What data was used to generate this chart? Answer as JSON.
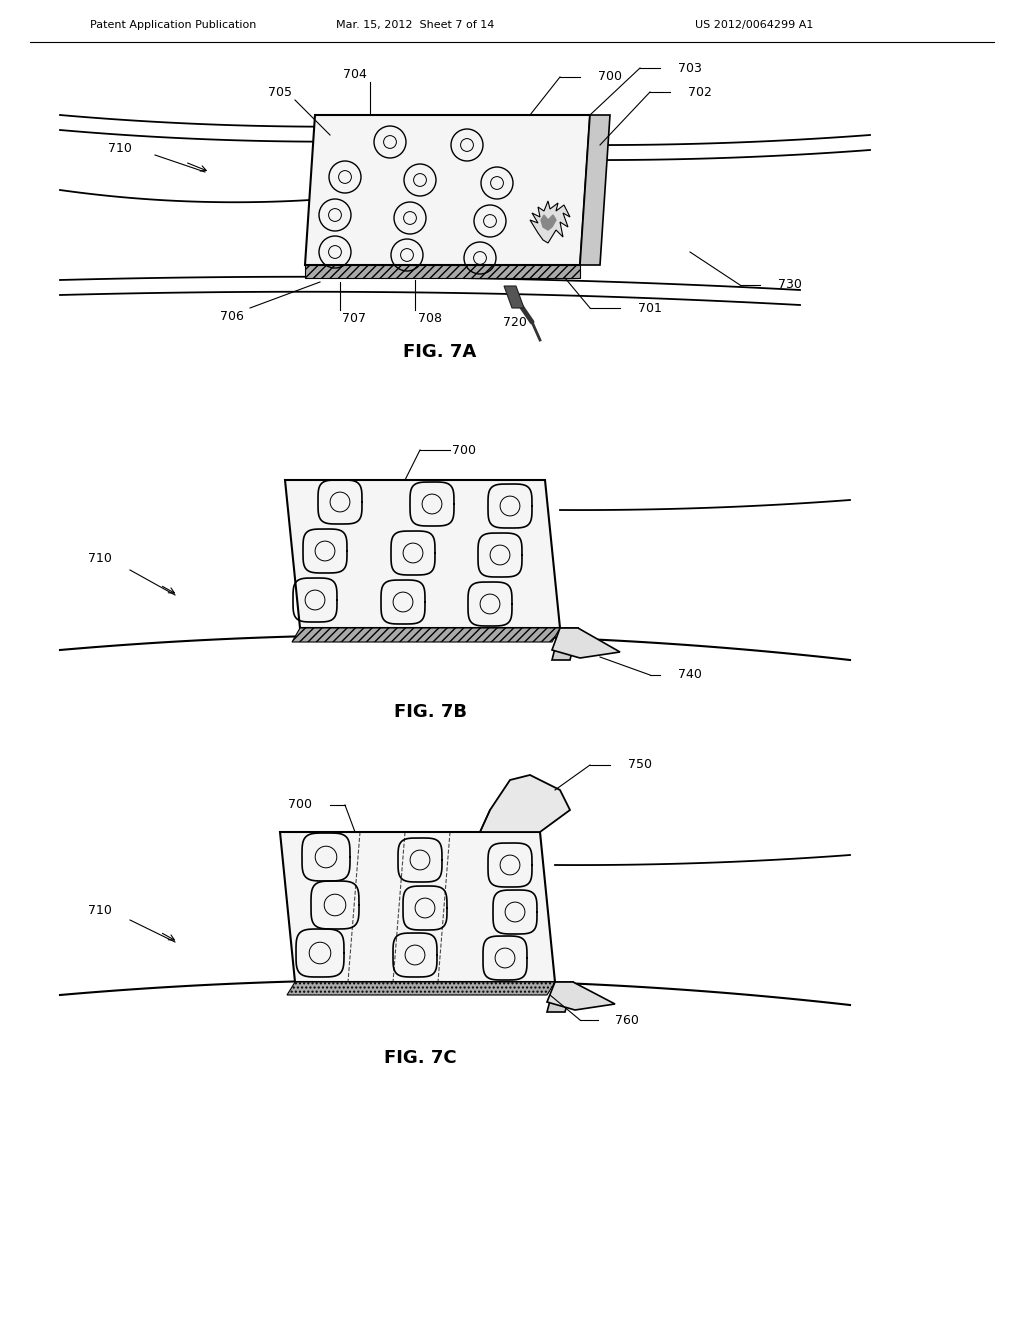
{
  "fig_width": 10.24,
  "fig_height": 13.2,
  "dpi": 100,
  "bg_color": "#ffffff",
  "header_left": "Patent Application Publication",
  "header_center": "Mar. 15, 2012  Sheet 7 of 14",
  "header_right": "US 2012/0064299 A1",
  "fig7a_label": "FIG. 7A",
  "fig7b_label": "FIG. 7B",
  "fig7c_label": "FIG. 7C",
  "lc": "#000000",
  "afs": 9,
  "fls": 13
}
